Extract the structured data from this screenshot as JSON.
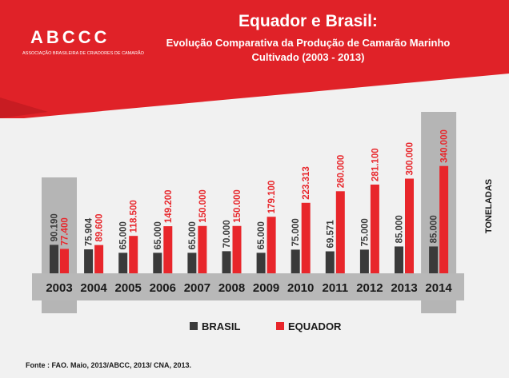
{
  "header": {
    "logo_text": "ABCCC",
    "logo_subtitle": "ASSOCIAÇÃO BRASILEIRA DE CRIADORES DE CAMARÃO",
    "title": "Equador e Brasil:",
    "subtitle_line1": "Evolução Comparativa da Produção de Camarão Marinho",
    "subtitle_line2": "Cultivado (2003 - 2013)"
  },
  "source": "Fonte : FAO. Maio, 2013/ABCC, 2013/ CNA, 2013.",
  "colors": {
    "brasil": "#3a3a3a",
    "equador": "#e8262b",
    "header_red": "#e02228",
    "highlight_bg": "#b5b5b5",
    "axis_bar": "#b8b8b8"
  },
  "chart_data": {
    "type": "bar",
    "title": "Equador e Brasil:",
    "ylabel": "TONELADAS",
    "categories": [
      "2003",
      "2004",
      "2005",
      "2006",
      "2007",
      "2008",
      "2009",
      "2010",
      "2011",
      "2012",
      "2013",
      "2014"
    ],
    "highlighted_categories": [
      "2003",
      "2014"
    ],
    "series": [
      {
        "name": "BRASIL",
        "values": [
          90190,
          75904,
          65000,
          65000,
          65000,
          70000,
          65000,
          75000,
          69571,
          75000,
          85000,
          85000
        ],
        "labels": [
          "90.190",
          "75.904",
          "65.000",
          "65.000",
          "65.000",
          "70.000",
          "65.000",
          "75.000",
          "69.571",
          "75.000",
          "85.000",
          "85.000"
        ]
      },
      {
        "name": "EQUADOR",
        "values": [
          77400,
          89600,
          118500,
          149200,
          150000,
          150000,
          179100,
          223313,
          260000,
          281100,
          300000,
          340000
        ],
        "labels": [
          "77.400",
          "89.600",
          "118.500",
          "149.200",
          "150.000",
          "150.000",
          "179.100",
          "223.313",
          "260.000",
          "281.100",
          "300.000",
          "340.000"
        ]
      }
    ],
    "legend_position": "bottom-center",
    "grid": false
  }
}
